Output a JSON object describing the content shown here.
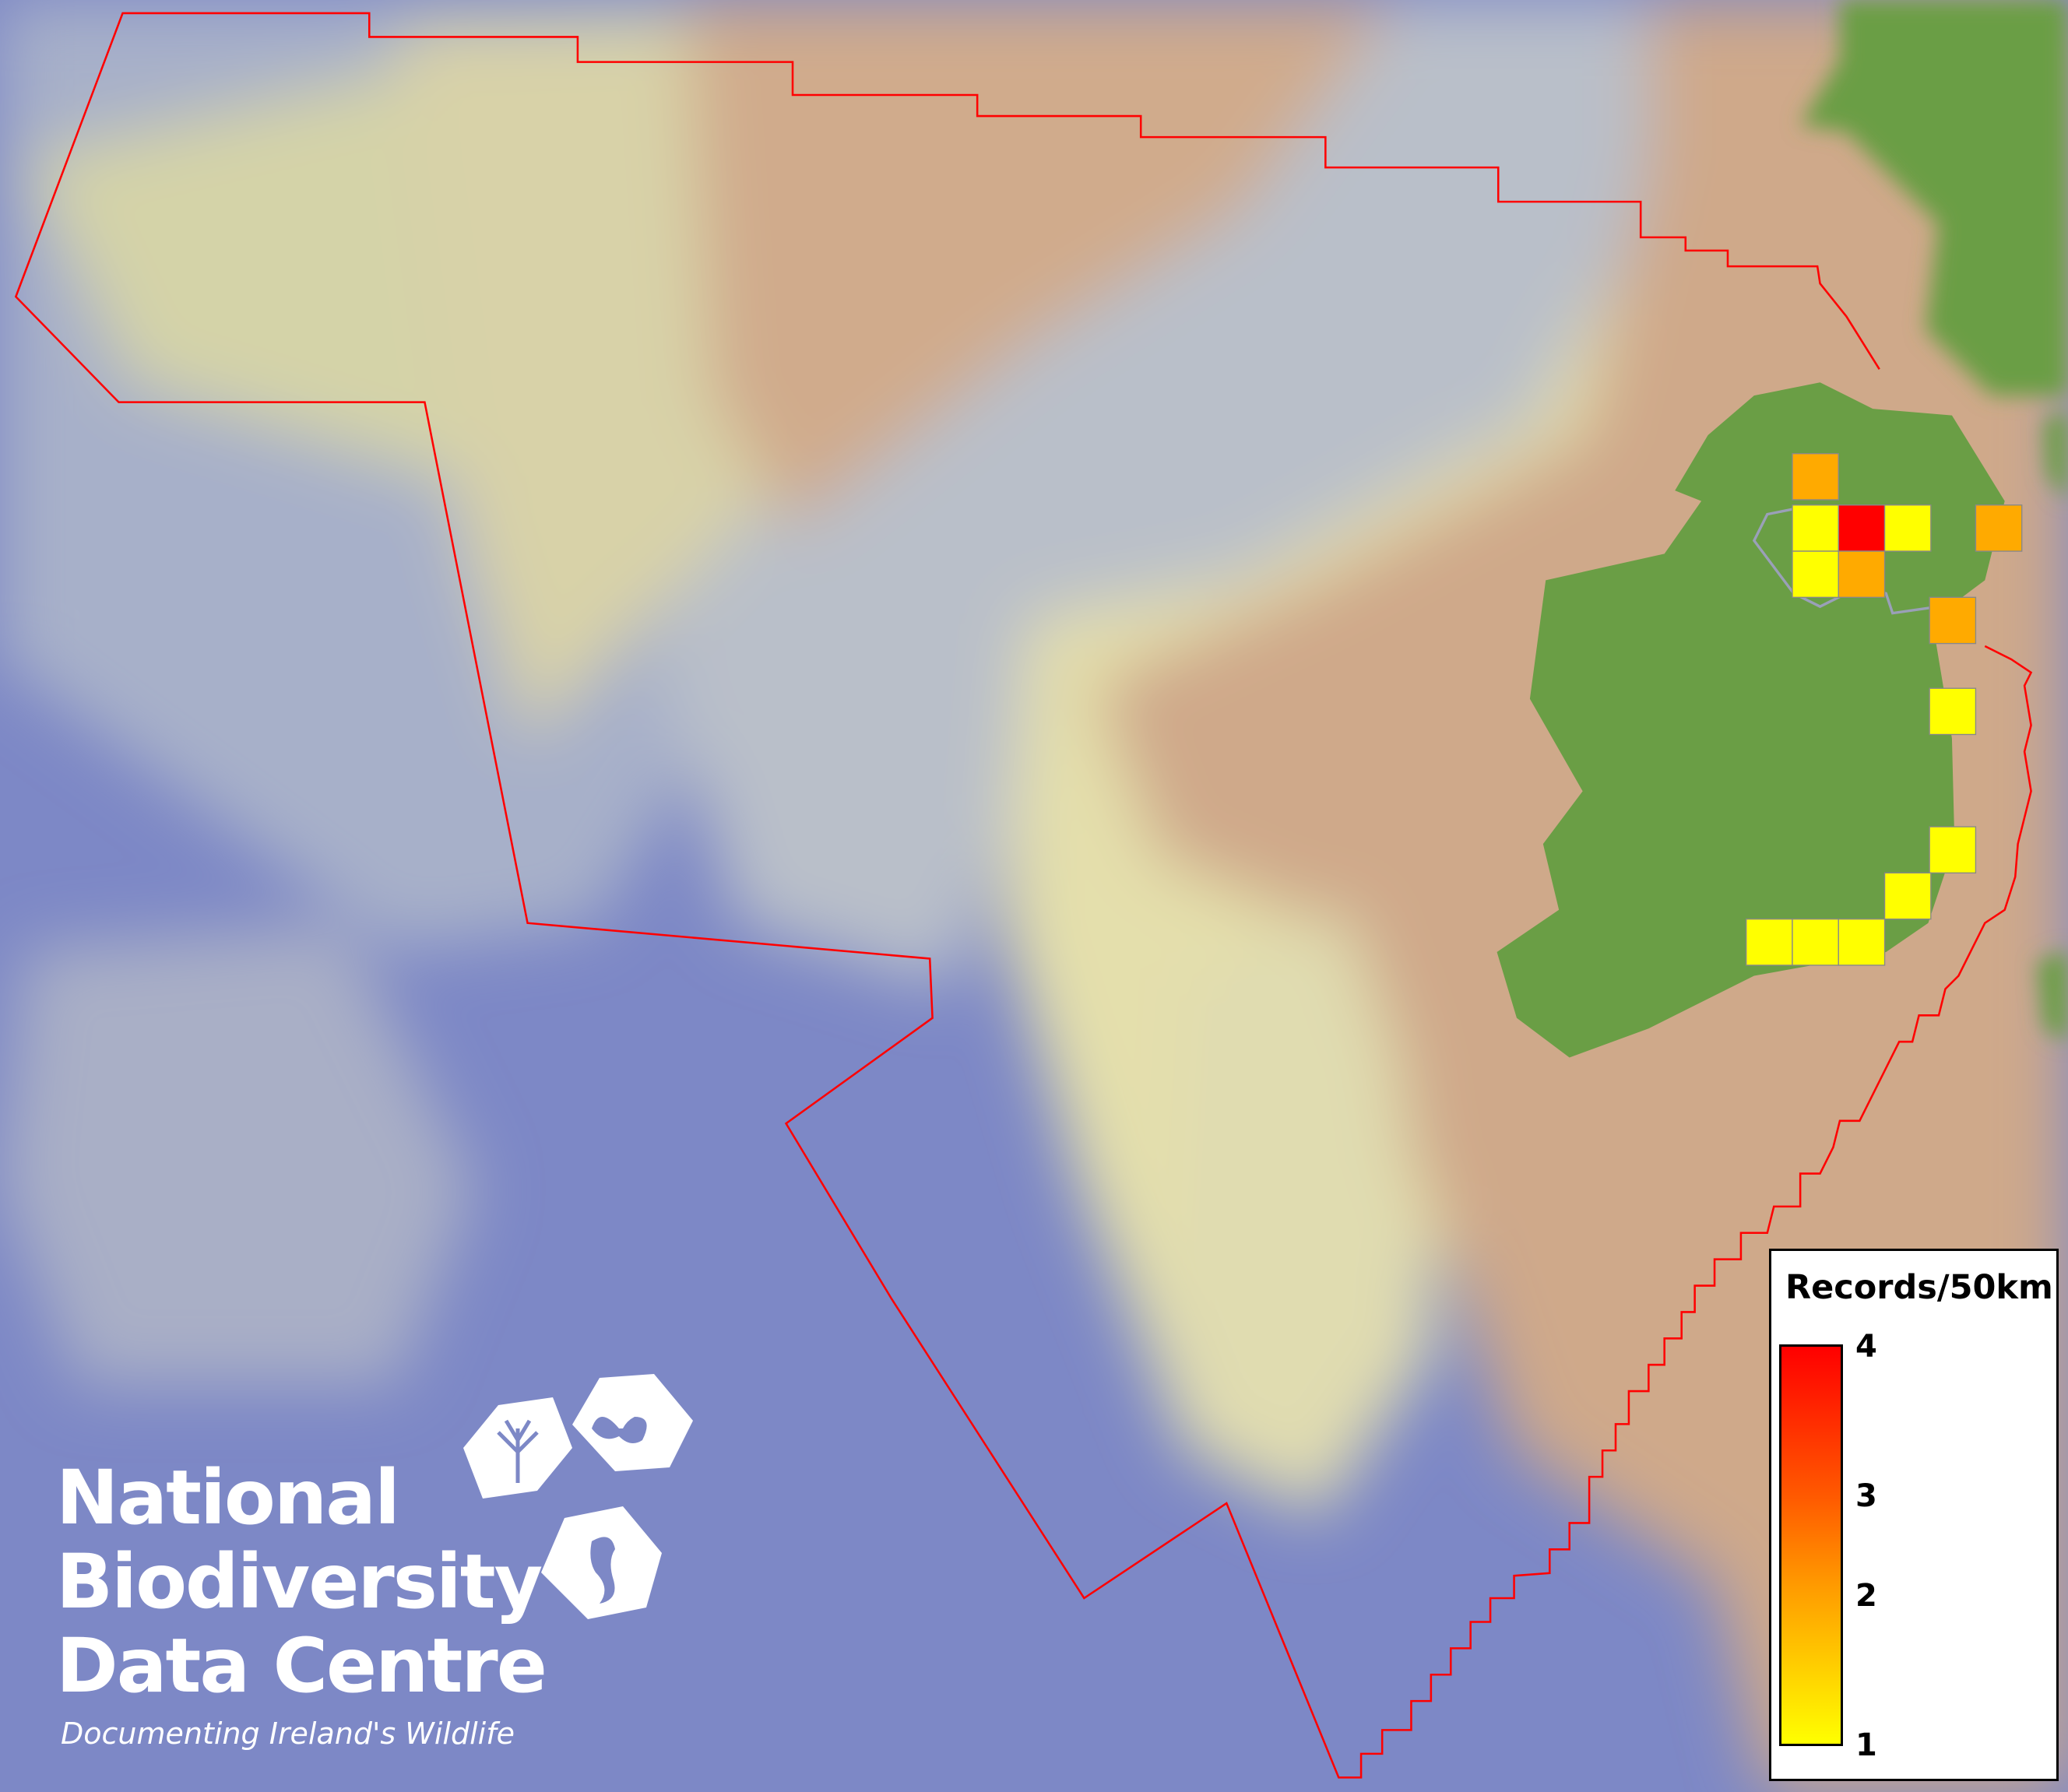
{
  "legend": {
    "title": "Records/50km",
    "ticks": [
      "4",
      "3",
      "2",
      "1"
    ],
    "min": 1,
    "max": 4,
    "gradient_colors": [
      "#ffff00",
      "#ff9a00",
      "#ff0000"
    ]
  },
  "logo": {
    "line1": "National",
    "line2": "Biodiversity",
    "line3": "Data Centre",
    "tagline": "Documenting Ireland's Wildlife"
  },
  "records": [
    {
      "value": 2
    },
    {
      "value": 1
    },
    {
      "value": 4
    },
    {
      "value": 1
    },
    {
      "value": 2
    },
    {
      "value": 1
    },
    {
      "value": 2
    },
    {
      "value": 2
    },
    {
      "value": 1
    },
    {
      "value": 1
    },
    {
      "value": 1
    },
    {
      "value": 1
    },
    {
      "value": 1
    },
    {
      "value": 1
    }
  ],
  "colors": {
    "boundary": "#ff0000",
    "land": "#6a9e45",
    "shelf": "#cfae8e",
    "deep_ocean": "#7d88c6"
  }
}
